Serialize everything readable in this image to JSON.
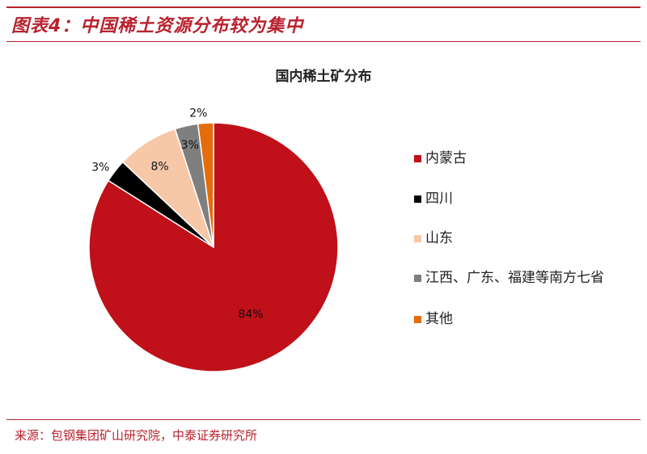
{
  "figure": {
    "title": "图表4：中国稀土资源分布较为集中",
    "source": "来源：包钢集团矿山研究院，中泰证券研究所"
  },
  "colors": {
    "accent": "#b8232f"
  },
  "chart_data": {
    "type": "pie",
    "title": "国内稀土矿分布",
    "slices": [
      {
        "label": "内蒙古",
        "value": 84,
        "display": "84%",
        "color": "#c0101a"
      },
      {
        "label": "四川",
        "value": 3,
        "display": "3%",
        "color": "#000000"
      },
      {
        "label": "山东",
        "value": 8,
        "display": "8%",
        "color": "#f7c8a8"
      },
      {
        "label": "江西、广东、福建等南方七省",
        "value": 3,
        "display": "3%",
        "color": "#7f7f7f"
      },
      {
        "label": "其他",
        "value": 2,
        "display": "2%",
        "color": "#e46c0a"
      }
    ],
    "legend_position": "right"
  }
}
